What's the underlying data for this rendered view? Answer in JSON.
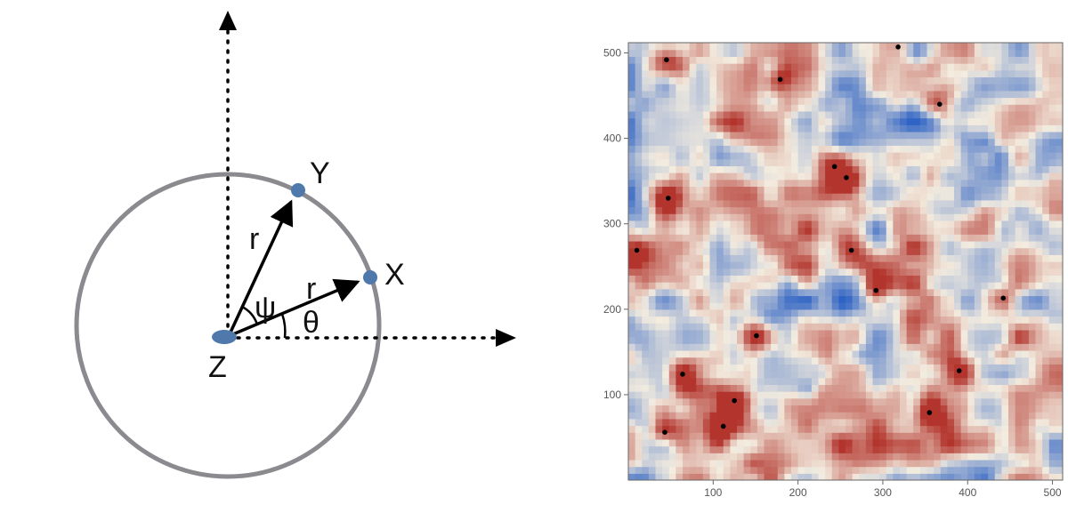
{
  "diagram": {
    "point_labels": {
      "y": "Y",
      "x": "X",
      "z": "Z"
    },
    "radius_label": "r",
    "angle_labels": {
      "psi": "ψ",
      "theta": "θ"
    },
    "colors": {
      "circle": "#8a8a8f",
      "point": "#4f79ab",
      "arrow": "#000000"
    }
  },
  "chart_data": {
    "type": "heatmap",
    "title": "",
    "xlabel": "",
    "ylabel": "",
    "xlim": [
      0,
      512
    ],
    "ylim": [
      0,
      512
    ],
    "xticks": [
      100,
      200,
      300,
      400,
      500
    ],
    "yticks": [
      100,
      200,
      300,
      400,
      500
    ],
    "colormap": [
      "#2f63c4",
      "#f3ecdf",
      "#b2342c"
    ],
    "peaks": [
      [
        45,
        492
      ],
      [
        179,
        469
      ],
      [
        367,
        440
      ],
      [
        318,
        507
      ],
      [
        243,
        367
      ],
      [
        257,
        354
      ],
      [
        47,
        330
      ],
      [
        10,
        269
      ],
      [
        263,
        269
      ],
      [
        292,
        222
      ],
      [
        442,
        213
      ],
      [
        151,
        169
      ],
      [
        64,
        124
      ],
      [
        125,
        93
      ],
      [
        112,
        63
      ],
      [
        43,
        56
      ],
      [
        390,
        128
      ],
      [
        355,
        79
      ]
    ]
  }
}
